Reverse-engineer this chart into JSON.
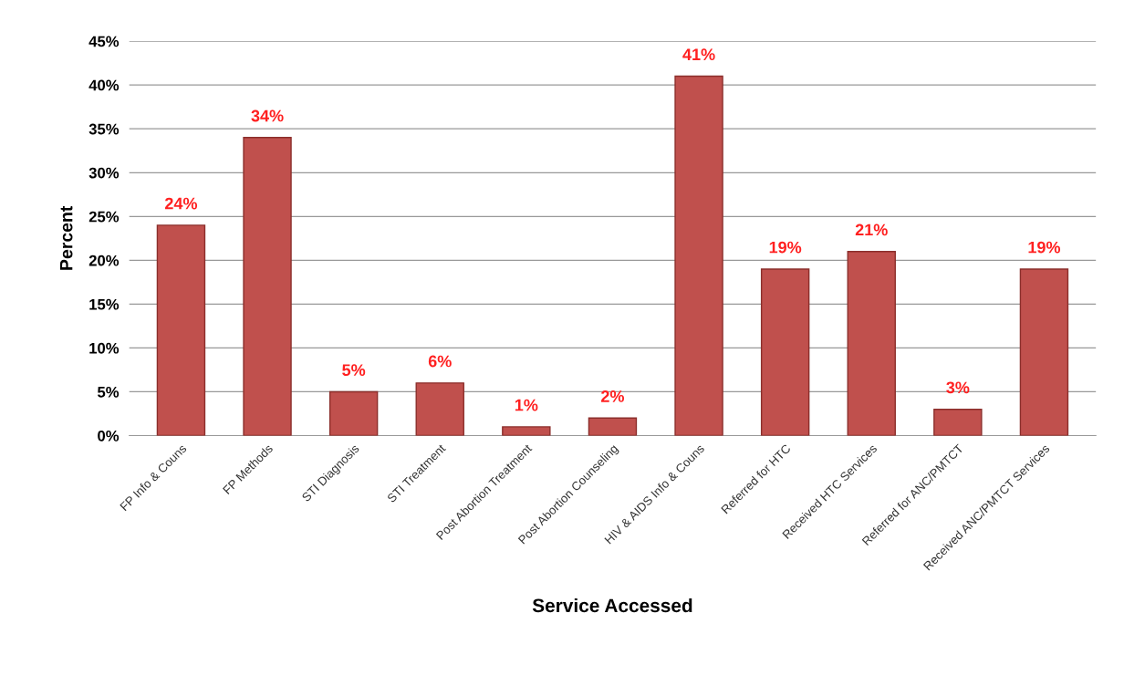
{
  "chart_data": {
    "type": "bar",
    "xlabel": "Service Accessed",
    "ylabel": "Percent",
    "categories": [
      "FP Info & Couns",
      "FP Methods",
      "STI Diagnosis",
      "STI Treatment",
      "Post Abortion Treatment",
      "Post Abortion Counseling",
      "HIV & AIDS Info & Couns",
      "Referred for HTC",
      "Received HTC Services",
      "Referred for ANC/PMTCT",
      "Received ANC/PMTCT Services"
    ],
    "values": [
      24,
      34,
      5,
      6,
      1,
      2,
      41,
      19,
      21,
      3,
      19
    ],
    "value_labels": [
      "24%",
      "34%",
      "5%",
      "6%",
      "1%",
      "2%",
      "41%",
      "19%",
      "21%",
      "3%",
      "19%"
    ],
    "color": "#c0504d",
    "ylim": [
      0,
      45
    ],
    "yticks": [
      {
        "value": 0,
        "label": "0%"
      },
      {
        "value": 5,
        "label": "5%"
      },
      {
        "value": 10,
        "label": "10%"
      },
      {
        "value": 15,
        "label": "15%"
      },
      {
        "value": 20,
        "label": "20%"
      },
      {
        "value": 25,
        "label": "25%"
      },
      {
        "value": 30,
        "label": "30%"
      },
      {
        "value": 35,
        "label": "35%"
      },
      {
        "value": 40,
        "label": "40%"
      },
      {
        "value": 45,
        "label": "45%"
      }
    ],
    "grid": "y"
  }
}
